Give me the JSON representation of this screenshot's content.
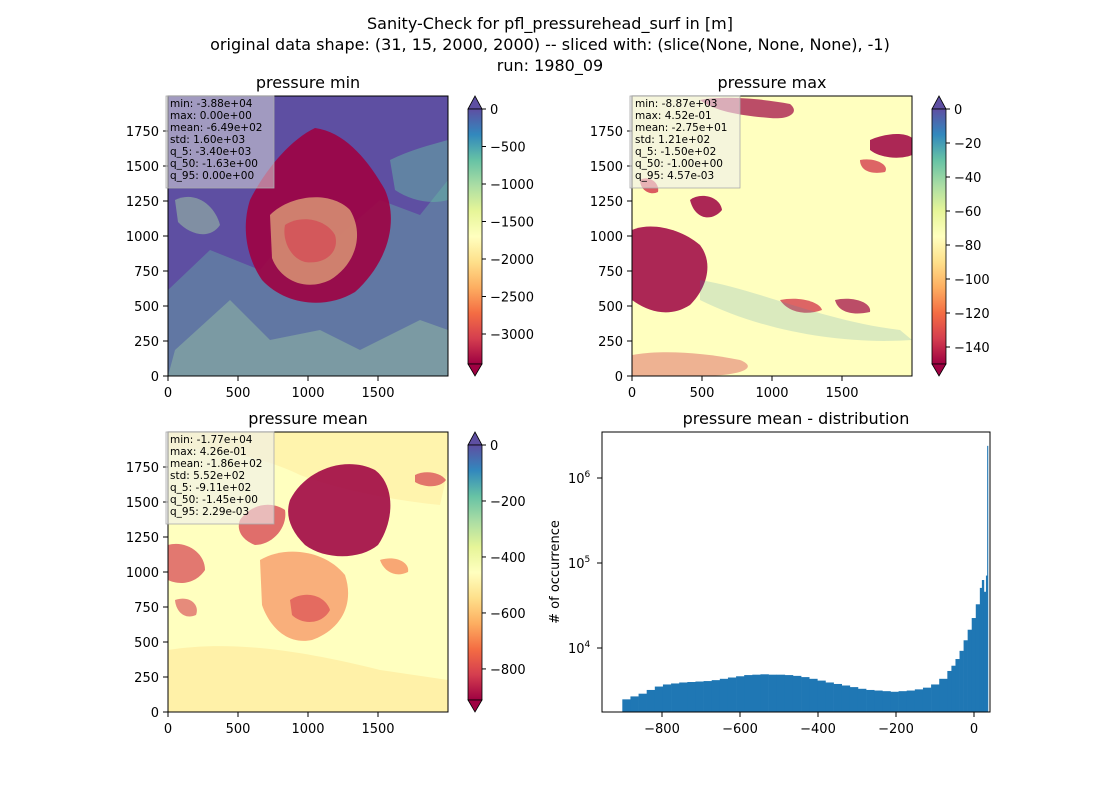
{
  "figure": {
    "title_lines": [
      "Sanity-Check for pfl_pressurehead_surf in [m]",
      "original data shape: (31, 15, 2000, 2000) -- sliced with: (slice(None, None, None), -1)",
      "run: 1980_09"
    ]
  },
  "panels": [
    {
      "title": "pressure min",
      "x_ticks": [
        "0",
        "500",
        "1000",
        "1500"
      ],
      "y_ticks": [
        "0",
        "250",
        "500",
        "750",
        "1000",
        "1250",
        "1500",
        "1750"
      ],
      "stats": [
        "min: -3.88e+04",
        "max: 0.00e+00",
        "mean: -6.49e+02",
        "std: 1.60e+03",
        "q_5: -3.40e+03",
        "q_50: -1.63e+00",
        "q_95: 0.00e+00"
      ],
      "colorbar": {
        "ticks": [
          "0",
          "−500",
          "−1000",
          "−1500",
          "−2000",
          "−2500",
          "−3000"
        ],
        "values": [
          0,
          -500,
          -1000,
          -1500,
          -2000,
          -2500,
          -3000
        ],
        "vmin": -3400,
        "vmax": 0
      }
    },
    {
      "title": "pressure max",
      "x_ticks": [
        "0",
        "500",
        "1000",
        "1500"
      ],
      "y_ticks": [
        "0",
        "250",
        "500",
        "750",
        "1000",
        "1250",
        "1500",
        "1750"
      ],
      "stats": [
        "min: -8.87e+03",
        "max: 4.52e-01",
        "mean: -2.75e+01",
        "std: 1.21e+02",
        "q_5: -1.50e+02",
        "q_50: -1.00e+00",
        "q_95: 4.57e-03"
      ],
      "colorbar": {
        "ticks": [
          "0",
          "−20",
          "−40",
          "−60",
          "−80",
          "−100",
          "−120",
          "−140"
        ],
        "values": [
          0,
          -20,
          -40,
          -60,
          -80,
          -100,
          -120,
          -140
        ],
        "vmin": -150,
        "vmax": 0
      }
    },
    {
      "title": "pressure mean",
      "x_ticks": [
        "0",
        "500",
        "1000",
        "1500"
      ],
      "y_ticks": [
        "0",
        "250",
        "500",
        "750",
        "1000",
        "1250",
        "1500",
        "1750"
      ],
      "stats": [
        "min: -1.77e+04",
        "max: 4.26e-01",
        "mean: -1.86e+02",
        "std: 5.52e+02",
        "q_5: -9.11e+02",
        "q_50: -1.45e+00",
        "q_95: 2.29e-03"
      ],
      "colorbar": {
        "ticks": [
          "0",
          "−200",
          "−400",
          "−600",
          "−800"
        ],
        "values": [
          0,
          -200,
          -400,
          -600,
          -800
        ],
        "vmin": -911,
        "vmax": 0
      }
    }
  ],
  "histogram": {
    "title": "pressure mean - distribution",
    "ylabel": "# of occurrence",
    "x_ticks": [
      "−800",
      "−600",
      "−400",
      "−200",
      "0"
    ],
    "y_tick_bases": [
      "10",
      "10",
      "10"
    ],
    "y_tick_exps": [
      "6",
      "5",
      "4"
    ]
  },
  "chart_data": [
    {
      "type": "heatmap",
      "title": "pressure min",
      "xlim": [
        0,
        2000
      ],
      "ylim": [
        0,
        2000
      ],
      "colormap": "Spectral",
      "colorbar_range": [
        -3400,
        0
      ]
    },
    {
      "type": "heatmap",
      "title": "pressure max",
      "xlim": [
        0,
        2000
      ],
      "ylim": [
        0,
        2000
      ],
      "colormap": "Spectral",
      "colorbar_range": [
        -150,
        0
      ]
    },
    {
      "type": "heatmap",
      "title": "pressure mean",
      "xlim": [
        0,
        2000
      ],
      "ylim": [
        0,
        2000
      ],
      "colormap": "Spectral",
      "colorbar_range": [
        -911,
        0
      ]
    },
    {
      "type": "bar",
      "title": "pressure mean - distribution",
      "ylabel": "# of occurrence",
      "y_scale": "log",
      "xlim": [
        -950,
        5
      ],
      "ylim": [
        1700,
        3500000
      ],
      "color": "#1f77b4",
      "x": [
        -900,
        -880,
        -860,
        -840,
        -820,
        -800,
        -780,
        -760,
        -740,
        -720,
        -700,
        -680,
        -660,
        -640,
        -620,
        -600,
        -580,
        -560,
        -540,
        -520,
        -500,
        -480,
        -460,
        -440,
        -420,
        -400,
        -380,
        -360,
        -340,
        -320,
        -300,
        -280,
        -260,
        -240,
        -220,
        -200,
        -180,
        -160,
        -140,
        -120,
        -100,
        -90,
        -80,
        -70,
        -60,
        -50,
        -40,
        -30,
        -20,
        -15,
        -10,
        -5,
        -2
      ],
      "values": [
        2400,
        2600,
        2800,
        3100,
        3400,
        3600,
        3700,
        3800,
        3850,
        3900,
        3950,
        4050,
        4200,
        4350,
        4500,
        4650,
        4700,
        4750,
        4700,
        4700,
        4650,
        4550,
        4400,
        4200,
        4000,
        3800,
        3650,
        3500,
        3350,
        3200,
        3100,
        3050,
        3000,
        2950,
        3000,
        3050,
        3150,
        3300,
        3600,
        4200,
        5200,
        6000,
        7200,
        9000,
        12000,
        16000,
        22000,
        32000,
        50000,
        62000,
        45000,
        70000,
        2400000
      ]
    }
  ]
}
